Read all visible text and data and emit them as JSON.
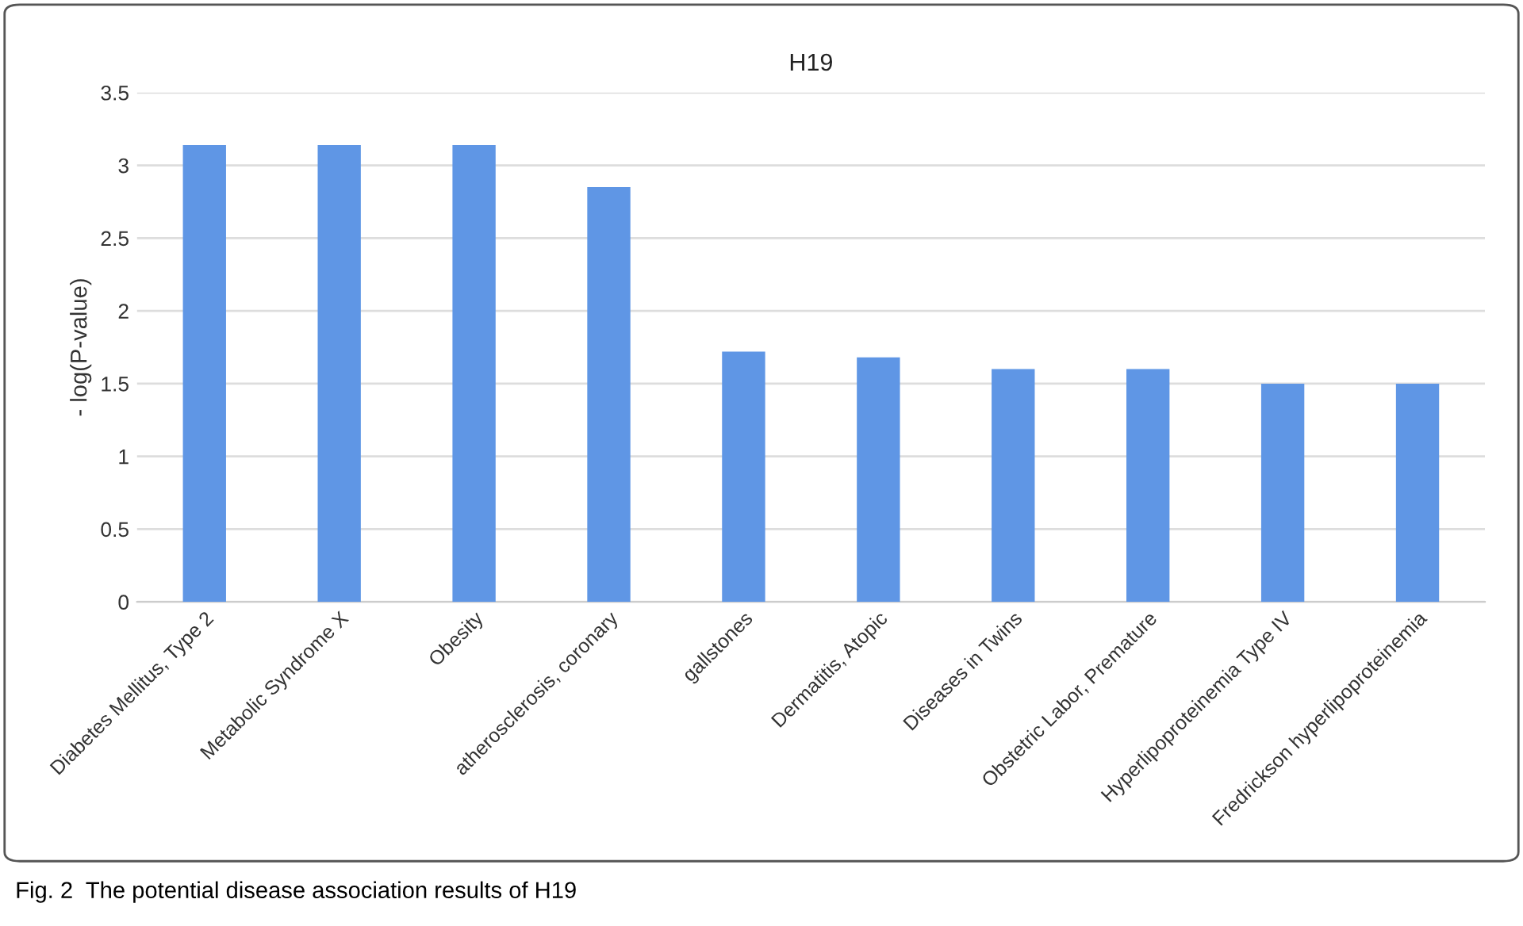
{
  "chart_data": {
    "type": "bar",
    "title": "H19",
    "ylabel": "- log(P-value)",
    "categories": [
      "Diabetes Mellitus, Type 2",
      "Metabolic Syndrome X",
      "Obesity",
      "atherosclerosis, coronary",
      "gallstones",
      "Dermatitis, Atopic",
      "Diseases in Twins",
      "Obstetric Labor, Premature",
      "Hyperlipoproteinemia Type IV",
      "Fredrickson hyperlipoproteinemia"
    ],
    "values": [
      3.14,
      3.14,
      3.14,
      2.85,
      1.72,
      1.68,
      1.6,
      1.6,
      1.5,
      1.5
    ],
    "color": "#5f96e5",
    "ylim": [
      0,
      3.5
    ],
    "yticks": [
      0,
      {
        "value": 0.5,
        "label": "0.5"
      },
      1,
      {
        "value": 1.5,
        "label": "1.5"
      },
      2,
      {
        "value": 2.5,
        "label": "2.5"
      },
      3,
      {
        "value": 3.5,
        "label": "3.5"
      }
    ],
    "grid": "y",
    "annotations": [
      "Fig. 2  The potential disease association results of H19"
    ]
  }
}
